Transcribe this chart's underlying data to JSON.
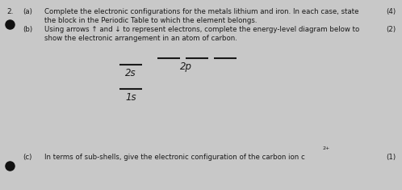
{
  "background_color": "#c8c8c8",
  "text_color": "#1a1a1a",
  "title_number": "2.",
  "part_a_label": "(a)",
  "part_a_text_line1": "Complete the electronic configurations for the metals lithium and iron. In each case, state",
  "part_a_text_line2": "the block in the Periodic Table to which the element belongs.",
  "part_a_marks": "(4)",
  "part_b_label": "(b)",
  "part_b_text_line1": "Using arrows ↑ and ↓ to represent electrons, complete the energy-level diagram below to",
  "part_b_text_line2": "show the electronic arrangement in an atom of carbon.",
  "part_b_marks": "(2)",
  "part_c_label": "(c)",
  "part_c_text": "In terms of sub-shells, give the electronic configuration of the carbon ion c",
  "part_c_superscript": "2+",
  "part_c_marks": "(1)",
  "label_2s": "2s",
  "label_1s": "1s",
  "label_2p": "2p",
  "line_color": "#1a1a1a",
  "font_size_body": 6.2,
  "font_size_sublabel": 8.5,
  "bullet_color": "#111111"
}
